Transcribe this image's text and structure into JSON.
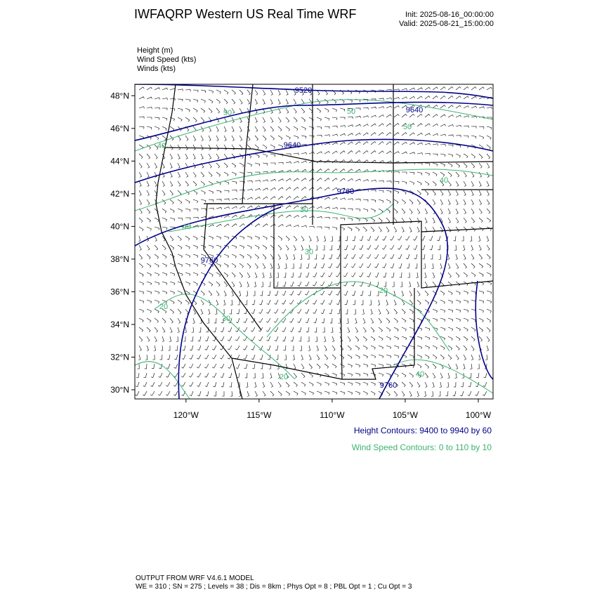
{
  "header": {
    "title": "IWFAQRP Western US Real Time WRF",
    "init": "Init: 2025-08-16_00:00:00",
    "valid": "Valid: 2025-08-21_15:00:00"
  },
  "fields": [
    "Height   (m)",
    "Wind Speed   (kts)",
    "Winds   (kts)"
  ],
  "map": {
    "ylim": [
      29.44,
      48.7
    ],
    "xlim": [
      -123.5,
      -98.99
    ],
    "yticks": [
      {
        "value": 30,
        "label": "30°N"
      },
      {
        "value": 32,
        "label": "32°N"
      },
      {
        "value": 34,
        "label": "34°N"
      },
      {
        "value": 36,
        "label": "36°N"
      },
      {
        "value": 38,
        "label": "38°N"
      },
      {
        "value": 40,
        "label": "40°N"
      },
      {
        "value": 42,
        "label": "42°N"
      },
      {
        "value": 44,
        "label": "44°N"
      },
      {
        "value": 46,
        "label": "46°N"
      },
      {
        "value": 48,
        "label": "48°N"
      }
    ],
    "xticks": [
      {
        "value": -120,
        "label": "120°W"
      },
      {
        "value": -115,
        "label": "115°W"
      },
      {
        "value": -110,
        "label": "110°W"
      },
      {
        "value": -105,
        "label": "105°W"
      },
      {
        "value": -100,
        "label": "100°W"
      }
    ],
    "height_labels": [
      "9520",
      "9640",
      "9640",
      "9760",
      "9760",
      "9760"
    ],
    "wind_labels": [
      "50",
      "50",
      "50",
      "40",
      "40",
      "40",
      "30",
      "30",
      "20",
      "30",
      "20",
      "20",
      "40"
    ]
  },
  "legend": {
    "height": "Height Contours: 9400 to 9940 by 60",
    "wind": "Wind Speed Contours: 0 to 110 by 10"
  },
  "footer": {
    "line1": "OUTPUT FROM WRF V4.6.1 MODEL",
    "line2": "WE = 310 ; SN = 275 ; Levels = 38 ; Dis = 8km ; Phys Opt = 8 ; PBL Opt = 1 ; Cu Opt = 3"
  }
}
